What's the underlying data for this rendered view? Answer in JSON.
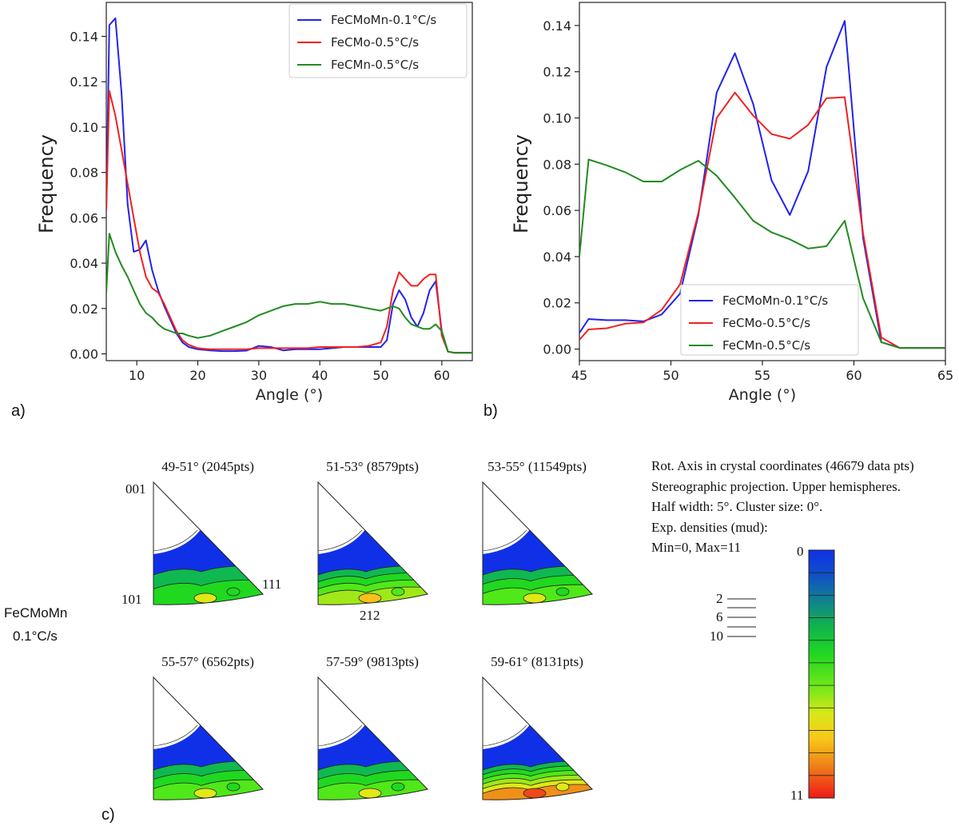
{
  "chart_data": [
    {
      "panel": "a)",
      "type": "line",
      "xlabel": "Angle (°)",
      "ylabel": "Frequency",
      "xlim": [
        5,
        65
      ],
      "ylim": [
        -0.003,
        0.155
      ],
      "xticks": [
        10,
        20,
        30,
        40,
        50,
        60
      ],
      "yticks": [
        0.0,
        0.02,
        0.04,
        0.06,
        0.08,
        0.1,
        0.12,
        0.14
      ],
      "legend_position": "top-right",
      "series": [
        {
          "name": "FeCMoMn-0.1°C/s",
          "color": "#2222ee",
          "x": [
            5,
            5.5,
            6.5,
            7.5,
            8.5,
            9.5,
            10.5,
            11.5,
            12.5,
            13.5,
            14.5,
            15.5,
            16.5,
            17.5,
            18.5,
            20,
            22,
            24,
            26,
            28,
            30,
            32,
            34,
            36,
            38,
            40,
            42,
            44,
            46,
            48,
            50,
            51,
            52,
            53,
            54,
            55,
            56,
            57,
            58,
            59,
            60,
            61,
            62,
            65
          ],
          "y": [
            0.063,
            0.145,
            0.148,
            0.115,
            0.066,
            0.045,
            0.046,
            0.05,
            0.037,
            0.028,
            0.021,
            0.015,
            0.009,
            0.005,
            0.003,
            0.002,
            0.0015,
            0.0012,
            0.0012,
            0.0014,
            0.0035,
            0.003,
            0.0015,
            0.002,
            0.002,
            0.002,
            0.0025,
            0.003,
            0.003,
            0.003,
            0.003,
            0.006,
            0.022,
            0.028,
            0.024,
            0.016,
            0.012,
            0.018,
            0.028,
            0.032,
            0.01,
            0.001,
            0.0005,
            0.0005
          ]
        },
        {
          "name": "FeCMo-0.5°C/s",
          "color": "#ee2222",
          "x": [
            5,
            5.5,
            6.5,
            7.5,
            8.5,
            9.5,
            10.5,
            11.5,
            12.5,
            13.5,
            14.5,
            15.5,
            16.5,
            17.5,
            18.5,
            20,
            22,
            24,
            26,
            28,
            30,
            32,
            34,
            36,
            38,
            40,
            42,
            44,
            46,
            48,
            50,
            51,
            52,
            53,
            54,
            55,
            56,
            57,
            58,
            59,
            60,
            61,
            62,
            65
          ],
          "y": [
            0.063,
            0.116,
            0.105,
            0.09,
            0.075,
            0.06,
            0.045,
            0.034,
            0.029,
            0.027,
            0.022,
            0.016,
            0.01,
            0.006,
            0.004,
            0.0025,
            0.002,
            0.002,
            0.002,
            0.002,
            0.0025,
            0.0025,
            0.0025,
            0.0025,
            0.0025,
            0.003,
            0.003,
            0.003,
            0.003,
            0.0035,
            0.005,
            0.012,
            0.028,
            0.036,
            0.033,
            0.03,
            0.03,
            0.033,
            0.035,
            0.035,
            0.008,
            0.001,
            0.0005,
            0.0005
          ]
        },
        {
          "name": "FeCMn-0.5°C/s",
          "color": "#228B22",
          "x": [
            5,
            5.5,
            6.5,
            7.5,
            8.5,
            9.5,
            10.5,
            11.5,
            12.5,
            13.5,
            14.5,
            15.5,
            16.5,
            17.5,
            18.5,
            20,
            22,
            24,
            26,
            28,
            30,
            32,
            34,
            36,
            38,
            40,
            42,
            44,
            46,
            48,
            50,
            51,
            52,
            53,
            54,
            55,
            56,
            57,
            58,
            59,
            60,
            61,
            62,
            65
          ],
          "y": [
            0.027,
            0.053,
            0.045,
            0.039,
            0.034,
            0.028,
            0.022,
            0.018,
            0.016,
            0.013,
            0.011,
            0.01,
            0.009,
            0.009,
            0.008,
            0.007,
            0.008,
            0.01,
            0.012,
            0.014,
            0.017,
            0.019,
            0.021,
            0.022,
            0.022,
            0.023,
            0.022,
            0.022,
            0.021,
            0.02,
            0.019,
            0.02,
            0.021,
            0.02,
            0.016,
            0.013,
            0.012,
            0.011,
            0.011,
            0.013,
            0.01,
            0.001,
            0.0005,
            0.0005
          ]
        }
      ]
    },
    {
      "panel": "b)",
      "type": "line",
      "xlabel": "Angle (°)",
      "ylabel": "Frequency",
      "xlim": [
        45,
        65
      ],
      "ylim": [
        -0.005,
        0.15
      ],
      "xticks": [
        45,
        50,
        55,
        60,
        65
      ],
      "yticks": [
        0.0,
        0.02,
        0.04,
        0.06,
        0.08,
        0.1,
        0.12,
        0.14
      ],
      "legend_position": "bottom-center",
      "series": [
        {
          "name": "FeCMoMn-0.1°C/s",
          "color": "#2222ee",
          "x": [
            45,
            45.5,
            46.5,
            47.5,
            48.5,
            49.5,
            50.5,
            51.5,
            52.5,
            53.5,
            54.5,
            55.5,
            56.5,
            57.5,
            58.5,
            59.5,
            60.5,
            61.5,
            62.5,
            63.5,
            64.5,
            65
          ],
          "y": [
            0.007,
            0.013,
            0.0125,
            0.0125,
            0.012,
            0.015,
            0.024,
            0.058,
            0.111,
            0.128,
            0.106,
            0.073,
            0.058,
            0.077,
            0.122,
            0.142,
            0.048,
            0.003,
            0.0005,
            0.0005,
            0.0005,
            0.0005
          ]
        },
        {
          "name": "FeCMo-0.5°C/s",
          "color": "#ee2222",
          "x": [
            45,
            45.5,
            46.5,
            47.5,
            48.5,
            49.5,
            50.5,
            51.5,
            52.5,
            53.5,
            54.5,
            55.5,
            56.5,
            57.5,
            58.5,
            59.5,
            60.5,
            61.5,
            62.5,
            63.5,
            64.5,
            65
          ],
          "y": [
            0.004,
            0.0085,
            0.009,
            0.011,
            0.0115,
            0.017,
            0.028,
            0.059,
            0.1,
            0.111,
            0.101,
            0.093,
            0.091,
            0.097,
            0.1085,
            0.109,
            0.05,
            0.005,
            0.0005,
            0.0005,
            0.0005,
            0.0005
          ]
        },
        {
          "name": "FeCMn-0.5°C/s",
          "color": "#228B22",
          "x": [
            45,
            45.5,
            46.5,
            47.5,
            48.5,
            49.5,
            50.5,
            51.5,
            52.5,
            53.5,
            54.5,
            55.5,
            56.5,
            57.5,
            58.5,
            59.5,
            60.5,
            61.5,
            62.5,
            63.5,
            64.5,
            65
          ],
          "y": [
            0.04,
            0.082,
            0.0795,
            0.0765,
            0.0725,
            0.0725,
            0.0775,
            0.0815,
            0.075,
            0.0655,
            0.0555,
            0.0505,
            0.0475,
            0.0435,
            0.0445,
            0.0555,
            0.022,
            0.003,
            0.0005,
            0.0005,
            0.0005,
            0.0005
          ]
        }
      ]
    }
  ],
  "panel_c": {
    "label": "c)",
    "sample_line1": "FeCMoMn",
    "sample_line2": "0.1°C/s",
    "corner_001": "001",
    "corner_101": "101",
    "corner_111": "111",
    "pole_212": "212",
    "maps": [
      {
        "title": "49-51° (2045pts)",
        "level": 0.3
      },
      {
        "title": "51-53° (8579pts)",
        "level": 0.45
      },
      {
        "title": "53-55° (11549pts)",
        "level": 0.4
      },
      {
        "title": "55-57° (6562pts)",
        "level": 0.32
      },
      {
        "title": "57-59° (9813pts)",
        "level": 0.38
      },
      {
        "title": "59-61° (8131pts)",
        "level": 0.75
      }
    ],
    "info_lines": [
      "Rot. Axis in crystal coordinates (46679 data pts)",
      "Stereographic projection. Upper hemispheres.",
      "Half width: 5°. Cluster size: 0°.",
      "Exp. densities (mud):",
      "Min=0, Max=11"
    ],
    "scale_min": "0",
    "scale_max": "11",
    "contour_2": "2",
    "contour_6": "6",
    "contour_10": "10",
    "colormap": [
      "#1030e8",
      "#1040d8",
      "#1060b8",
      "#108a8a",
      "#10b850",
      "#20d820",
      "#50e818",
      "#a0e818",
      "#e0e818",
      "#f8c018",
      "#f09018",
      "#f04818",
      "#f01818"
    ]
  }
}
